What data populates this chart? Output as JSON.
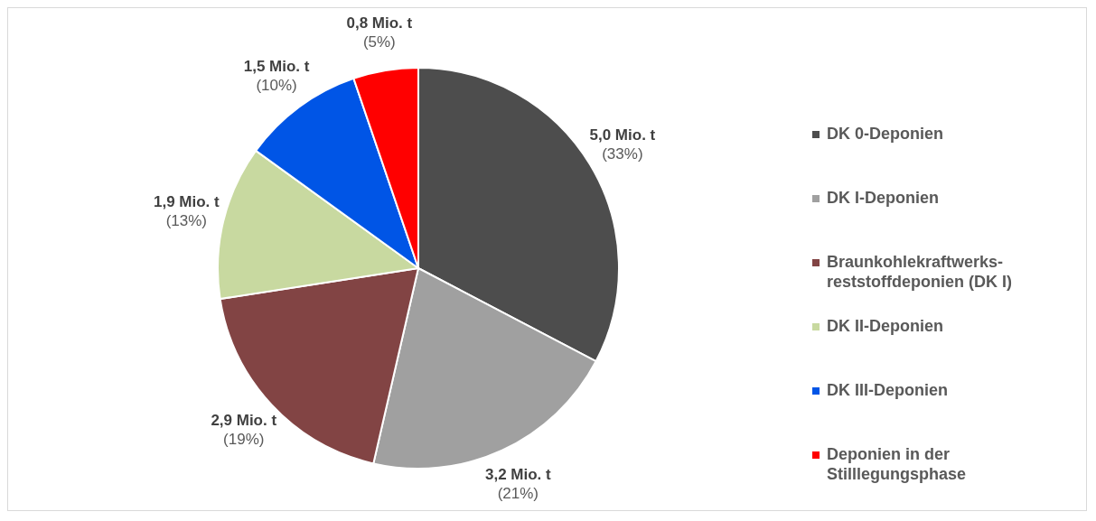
{
  "chart_data": {
    "type": "pie",
    "categories": [
      "DK 0-Deponien",
      "DK I-Deponien",
      "Braunkohlekraftwerks-reststoffdeponien (DK I)",
      "DK II-Deponien",
      "DK III-Deponien",
      "Deponien in der Stilllegungsphase"
    ],
    "values": [
      5.0,
      3.2,
      2.9,
      1.9,
      1.5,
      0.8
    ],
    "colors": [
      "#4d4d4d",
      "#a0a0a0",
      "#824444",
      "#c8d9a0",
      "#0055e6",
      "#ff0000"
    ],
    "value_labels": [
      "5,0 Mio. t\n(33%)",
      "3,2 Mio. t\n(21%)",
      "2,9 Mio. t\n(19%)",
      "1,9 Mio. t\n(13%)",
      "1,5 Mio. t\n(10%)",
      "0,8 Mio. t\n(5%)"
    ],
    "legend": "right"
  }
}
